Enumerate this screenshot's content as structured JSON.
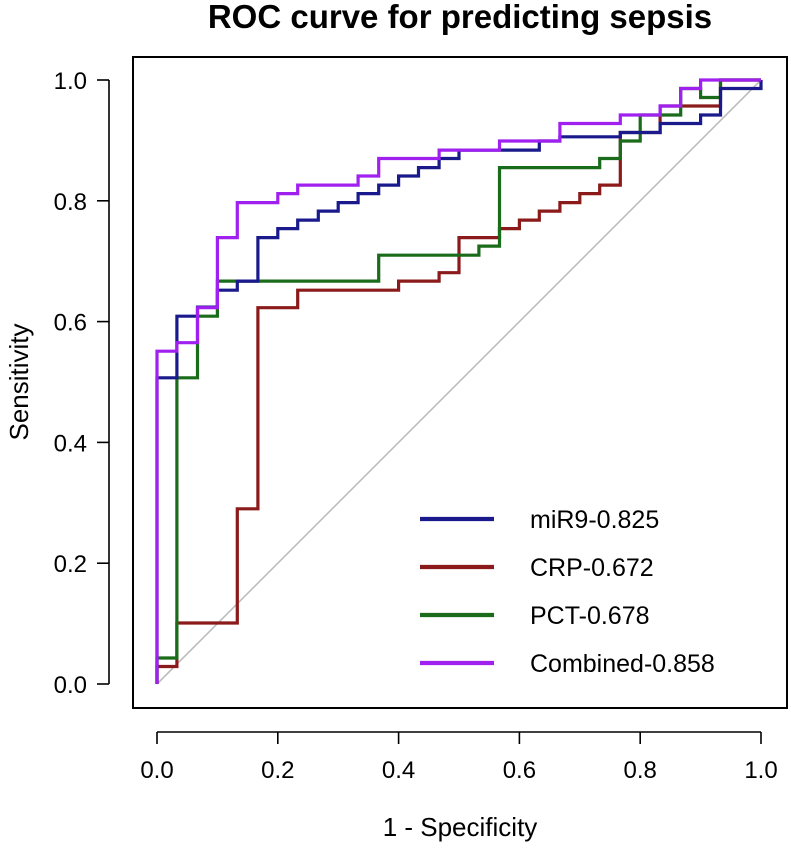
{
  "chart_data": {
    "type": "line",
    "title": "ROC curve for predicting sepsis",
    "xlabel": "1 - Specificity",
    "ylabel": "Sensitivity",
    "xlim": [
      0,
      1
    ],
    "ylim": [
      0,
      1
    ],
    "xticks": [
      0.0,
      0.2,
      0.4,
      0.6,
      0.8,
      1.0
    ],
    "yticks": [
      0.0,
      0.2,
      0.4,
      0.6,
      0.8,
      1.0
    ],
    "xtick_labels": [
      "0.0",
      "0.2",
      "0.4",
      "0.6",
      "0.8",
      "1.0"
    ],
    "ytick_labels": [
      "0.0",
      "0.2",
      "0.4",
      "0.6",
      "0.8",
      "1.0"
    ],
    "legend_position": "bottom-right",
    "reference_line": {
      "x": [
        0,
        1
      ],
      "y": [
        0,
        1
      ],
      "color": "#bdbdbd"
    },
    "series": [
      {
        "name": "miR9-0.825",
        "color": "#1a1a8c",
        "x": [
          0,
          0,
          0.033,
          0.033,
          0.067,
          0.067,
          0.1,
          0.1,
          0.133,
          0.133,
          0.167,
          0.167,
          0.2,
          0.2,
          0.233,
          0.233,
          0.267,
          0.267,
          0.3,
          0.3,
          0.333,
          0.333,
          0.367,
          0.367,
          0.4,
          0.4,
          0.433,
          0.433,
          0.467,
          0.467,
          0.5,
          0.5,
          0.633,
          0.633,
          0.667,
          0.667,
          0.767,
          0.767,
          0.833,
          0.833,
          0.9,
          0.9,
          0.933,
          0.933,
          1.0,
          1.0
        ],
        "y": [
          0,
          0.507,
          0.507,
          0.609,
          0.609,
          0.624,
          0.624,
          0.652,
          0.652,
          0.667,
          0.667,
          0.739,
          0.739,
          0.754,
          0.754,
          0.768,
          0.768,
          0.783,
          0.783,
          0.797,
          0.797,
          0.812,
          0.812,
          0.826,
          0.826,
          0.841,
          0.841,
          0.855,
          0.855,
          0.87,
          0.87,
          0.884,
          0.884,
          0.899,
          0.899,
          0.906,
          0.906,
          0.913,
          0.913,
          0.928,
          0.928,
          0.942,
          0.942,
          0.986,
          0.986,
          1.0
        ]
      },
      {
        "name": "CRP-0.672",
        "color": "#8b1a1a",
        "x": [
          0,
          0,
          0.033,
          0.033,
          0.133,
          0.133,
          0.167,
          0.167,
          0.233,
          0.233,
          0.4,
          0.4,
          0.467,
          0.467,
          0.5,
          0.5,
          0.567,
          0.567,
          0.6,
          0.6,
          0.633,
          0.633,
          0.667,
          0.667,
          0.7,
          0.7,
          0.733,
          0.733,
          0.767,
          0.767,
          0.833,
          0.833,
          0.933,
          0.933,
          1.0
        ],
        "y": [
          0,
          0.029,
          0.029,
          0.101,
          0.101,
          0.29,
          0.29,
          0.623,
          0.623,
          0.652,
          0.652,
          0.667,
          0.667,
          0.681,
          0.681,
          0.739,
          0.739,
          0.754,
          0.754,
          0.768,
          0.768,
          0.783,
          0.783,
          0.797,
          0.797,
          0.812,
          0.812,
          0.826,
          0.826,
          0.913,
          0.913,
          0.957,
          0.957,
          1.0,
          1.0
        ]
      },
      {
        "name": "PCT-0.678",
        "color": "#1a6b1a",
        "x": [
          0,
          0,
          0.033,
          0.033,
          0.067,
          0.067,
          0.1,
          0.1,
          0.367,
          0.367,
          0.533,
          0.533,
          0.567,
          0.567,
          0.733,
          0.733,
          0.767,
          0.767,
          0.8,
          0.8,
          0.867,
          0.867,
          0.9,
          0.9,
          0.933,
          0.933,
          1.0
        ],
        "y": [
          0,
          0.043,
          0.043,
          0.507,
          0.507,
          0.609,
          0.609,
          0.667,
          0.667,
          0.71,
          0.71,
          0.725,
          0.725,
          0.855,
          0.855,
          0.87,
          0.87,
          0.899,
          0.899,
          0.942,
          0.942,
          0.986,
          0.986,
          0.971,
          0.971,
          1.0,
          1.0
        ]
      },
      {
        "name": "Combined-0.858",
        "color": "#a020f0",
        "x": [
          0,
          0,
          0.033,
          0.033,
          0.067,
          0.067,
          0.1,
          0.1,
          0.133,
          0.133,
          0.167,
          0.167,
          0.2,
          0.2,
          0.233,
          0.233,
          0.333,
          0.333,
          0.367,
          0.367,
          0.467,
          0.467,
          0.567,
          0.567,
          0.667,
          0.667,
          0.767,
          0.767,
          0.8,
          0.8,
          0.833,
          0.833,
          0.867,
          0.867,
          0.9,
          0.9,
          1.0
        ],
        "y": [
          0,
          0.551,
          0.551,
          0.565,
          0.565,
          0.623,
          0.623,
          0.739,
          0.739,
          0.797,
          0.797,
          0.797,
          0.797,
          0.812,
          0.812,
          0.826,
          0.826,
          0.841,
          0.841,
          0.87,
          0.87,
          0.884,
          0.884,
          0.899,
          0.899,
          0.928,
          0.928,
          0.942,
          0.942,
          0.942,
          0.942,
          0.957,
          0.957,
          0.986,
          0.986,
          1.0,
          1.0
        ]
      }
    ]
  }
}
